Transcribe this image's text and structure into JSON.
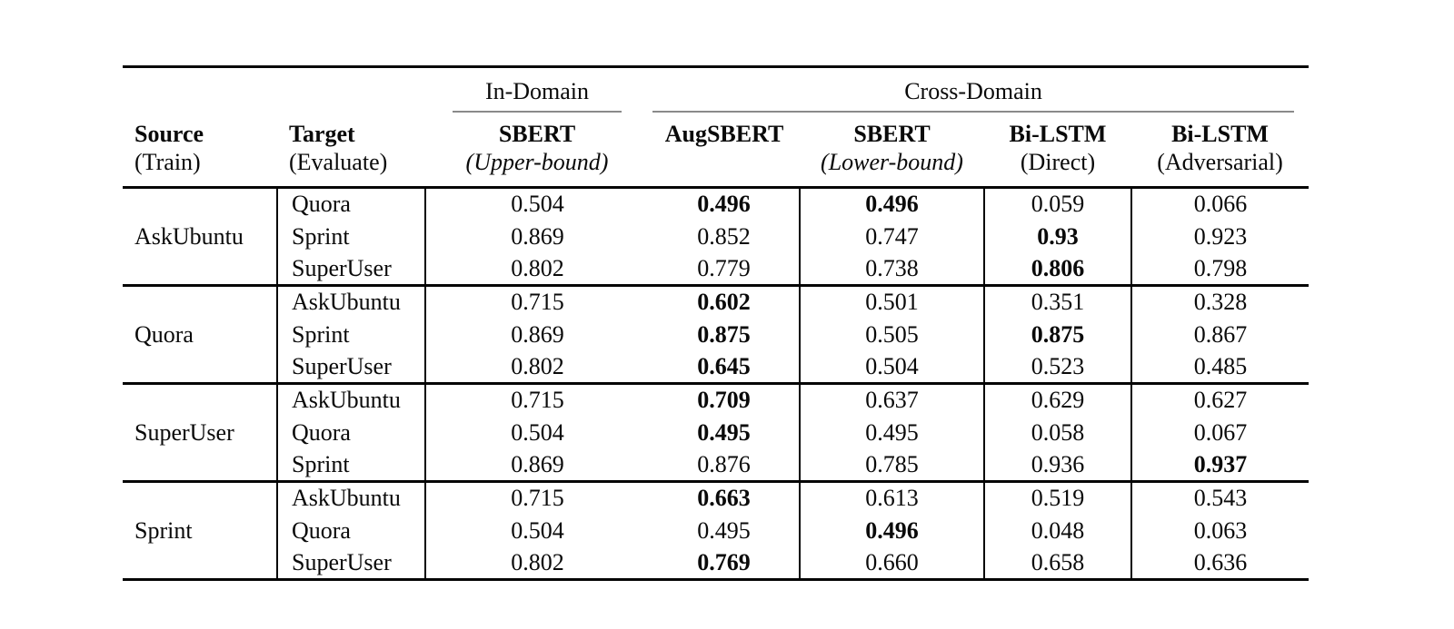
{
  "table": {
    "column_groups": {
      "in_domain": "In-Domain",
      "cross_domain": "Cross-Domain"
    },
    "columns": [
      {
        "id": "source",
        "line1": "Source",
        "line2": "(Train)"
      },
      {
        "id": "target",
        "line1": "Target",
        "line2": "(Evaluate)"
      },
      {
        "id": "sbert-upper-bound",
        "line1": "SBERT",
        "line2": "(Upper-bound)"
      },
      {
        "id": "augsbert",
        "line1": "AugSBERT",
        "line2": ""
      },
      {
        "id": "sbert-lower-bound",
        "line1": "SBERT",
        "line2": "(Lower-bound)"
      },
      {
        "id": "bilstm-direct",
        "line1": "Bi-LSTM",
        "line2": "(Direct)"
      },
      {
        "id": "bilstm-adversarial",
        "line1": "Bi-LSTM",
        "line2": "(Adversarial)"
      }
    ],
    "groups": [
      {
        "source": "AskUbuntu",
        "rows": [
          {
            "target": "Quora",
            "values": [
              "0.504",
              "0.496",
              "0.496",
              "0.059",
              "0.066"
            ],
            "bold": [
              false,
              true,
              true,
              false,
              false
            ]
          },
          {
            "target": "Sprint",
            "values": [
              "0.869",
              "0.852",
              "0.747",
              "0.93",
              "0.923"
            ],
            "bold": [
              false,
              false,
              false,
              true,
              false
            ]
          },
          {
            "target": "SuperUser",
            "values": [
              "0.802",
              "0.779",
              "0.738",
              "0.806",
              "0.798"
            ],
            "bold": [
              false,
              false,
              false,
              true,
              false
            ]
          }
        ]
      },
      {
        "source": "Quora",
        "rows": [
          {
            "target": "AskUbuntu",
            "values": [
              "0.715",
              "0.602",
              "0.501",
              "0.351",
              "0.328"
            ],
            "bold": [
              false,
              true,
              false,
              false,
              false
            ]
          },
          {
            "target": "Sprint",
            "values": [
              "0.869",
              "0.875",
              "0.505",
              "0.875",
              "0.867"
            ],
            "bold": [
              false,
              true,
              false,
              true,
              false
            ]
          },
          {
            "target": "SuperUser",
            "values": [
              "0.802",
              "0.645",
              "0.504",
              "0.523",
              "0.485"
            ],
            "bold": [
              false,
              true,
              false,
              false,
              false
            ]
          }
        ]
      },
      {
        "source": "SuperUser",
        "rows": [
          {
            "target": "AskUbuntu",
            "values": [
              "0.715",
              "0.709",
              "0.637",
              "0.629",
              "0.627"
            ],
            "bold": [
              false,
              true,
              false,
              false,
              false
            ]
          },
          {
            "target": "Quora",
            "values": [
              "0.504",
              "0.495",
              "0.495",
              "0.058",
              "0.067"
            ],
            "bold": [
              false,
              true,
              false,
              false,
              false
            ]
          },
          {
            "target": "Sprint",
            "values": [
              "0.869",
              "0.876",
              "0.785",
              "0.936",
              "0.937"
            ],
            "bold": [
              false,
              false,
              false,
              false,
              true
            ]
          }
        ]
      },
      {
        "source": "Sprint",
        "rows": [
          {
            "target": "AskUbuntu",
            "values": [
              "0.715",
              "0.663",
              "0.613",
              "0.519",
              "0.543"
            ],
            "bold": [
              false,
              true,
              false,
              false,
              false
            ]
          },
          {
            "target": "Quora",
            "values": [
              "0.504",
              "0.495",
              "0.496",
              "0.048",
              "0.063"
            ],
            "bold": [
              false,
              false,
              true,
              false,
              false
            ]
          },
          {
            "target": "SuperUser",
            "values": [
              "0.802",
              "0.769",
              "0.660",
              "0.658",
              "0.636"
            ],
            "bold": [
              false,
              true,
              false,
              false,
              false
            ]
          }
        ]
      }
    ]
  }
}
